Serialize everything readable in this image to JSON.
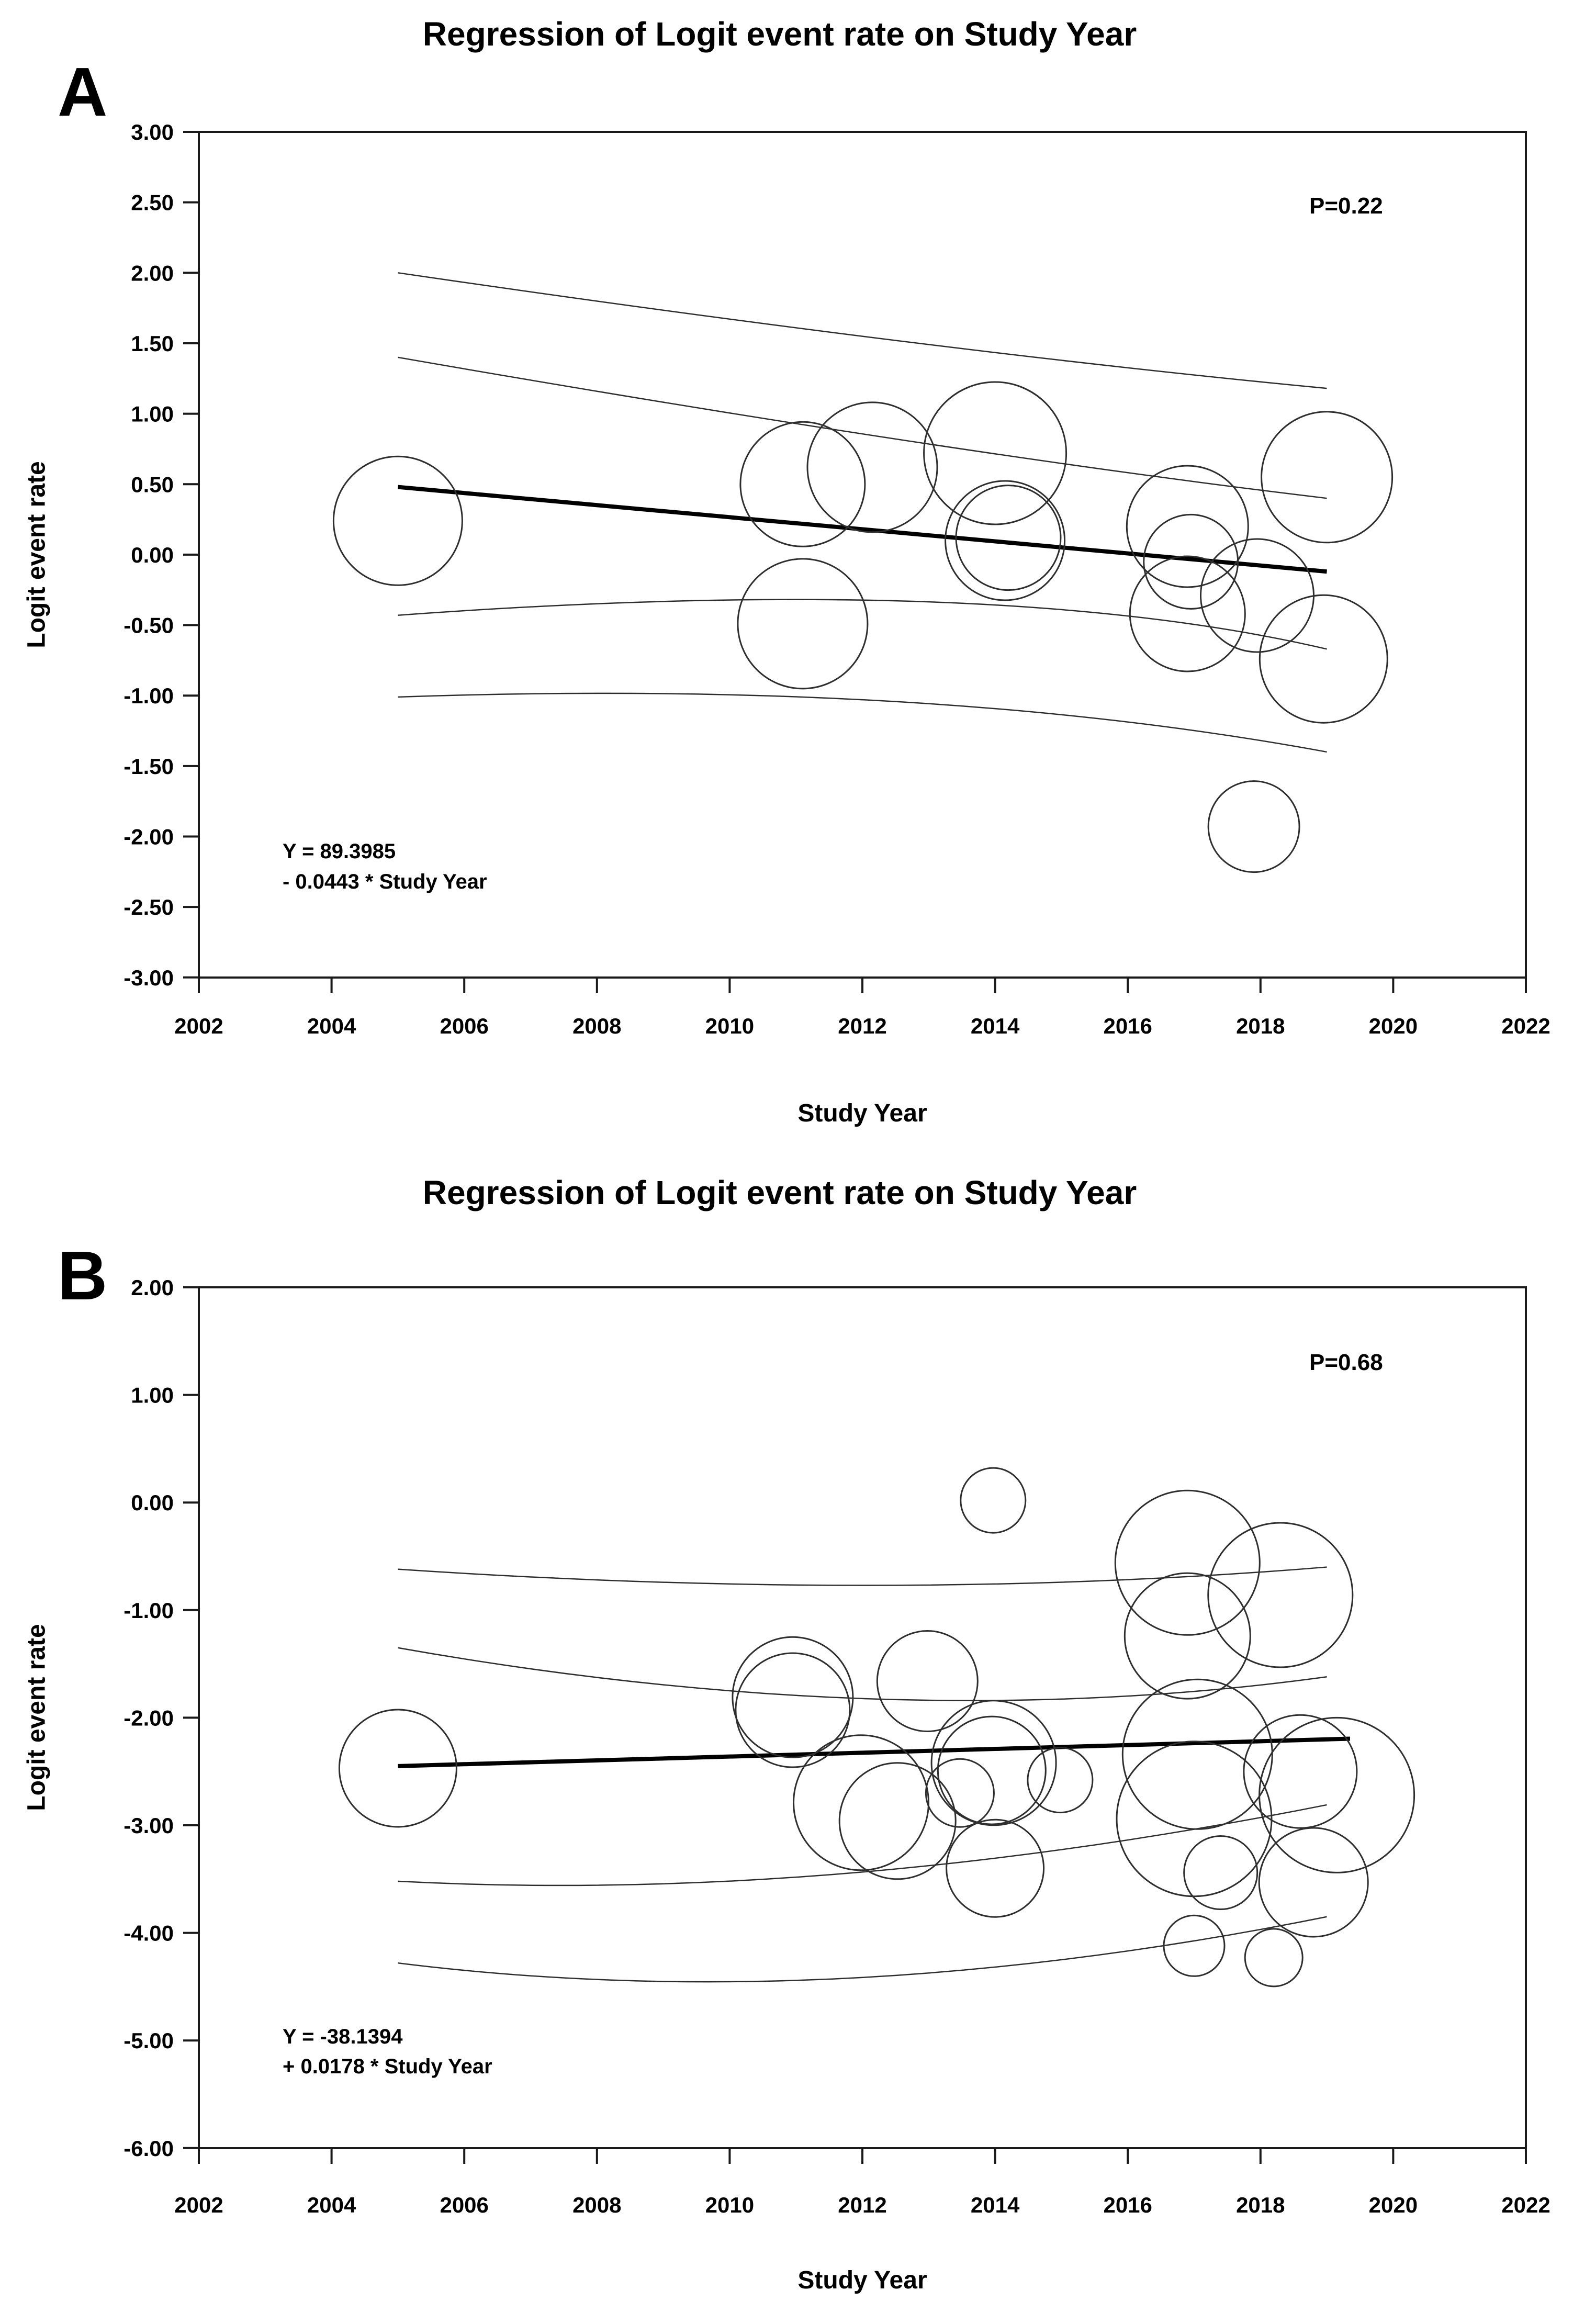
{
  "page": {
    "background": "#ffffff",
    "text_color": "#000000"
  },
  "chart_data": [
    {
      "type": "scatter",
      "subtype": "meta-regression-bubble",
      "panel_label": "A",
      "title": "Regression of Logit event rate on Study Year",
      "xlabel": "Study Year",
      "ylabel": "Logit event rate",
      "p_label": "P=0.22",
      "equation_line1": "Y = 89.3985",
      "equation_line2": "- 0.0443 * Study Year",
      "regression": {
        "intercept": 89.3985,
        "slope": -0.0443,
        "line_start": [
          2005,
          0.48
        ],
        "line_end": [
          2019,
          -0.12
        ]
      },
      "xlim": [
        2002,
        2022
      ],
      "ylim": [
        -3.0,
        3.0
      ],
      "grid": false,
      "x_ticks": [
        2002,
        2004,
        2006,
        2008,
        2010,
        2012,
        2014,
        2016,
        2018,
        2020,
        2022
      ],
      "x_tick_labels": [
        "2002",
        "2004",
        "2006",
        "2008",
        "2010",
        "2012",
        "2014",
        "2016",
        "2018",
        "2020",
        "2022"
      ],
      "y_tick_values": [
        3.0,
        2.5,
        2.0,
        1.5,
        1.0,
        0.5,
        0.0,
        -0.5,
        -1.0,
        -1.5,
        -2.0,
        -2.5,
        -3.0
      ],
      "y_tick_labels": [
        "3.00",
        "2.50",
        "2.00",
        "1.50",
        "1.00",
        "0.50",
        "0.00",
        "-0.50",
        "-1.00",
        "-1.50",
        "-2.00",
        "-2.50",
        "-3.00"
      ],
      "ci_curves": [
        {
          "name": "outer-upper",
          "start": [
            2005,
            2.0
          ],
          "control": [
            2013,
            1.45
          ],
          "end": [
            2019,
            1.18
          ]
        },
        {
          "name": "inner-upper",
          "start": [
            2005,
            1.4
          ],
          "control": [
            2013.3,
            0.72
          ],
          "end": [
            2019,
            0.4
          ]
        },
        {
          "name": "inner-lower",
          "start": [
            2005,
            -0.43
          ],
          "control": [
            2014,
            -0.12
          ],
          "end": [
            2019,
            -0.67
          ]
        },
        {
          "name": "outer-lower",
          "start": [
            2005,
            -1.01
          ],
          "control": [
            2013,
            -0.88
          ],
          "end": [
            2019,
            -1.4
          ]
        }
      ],
      "bubbles": [
        [
          2005.0,
          0.24,
          123
        ],
        [
          2011.1,
          0.5,
          119
        ],
        [
          2012.15,
          0.62,
          124
        ],
        [
          2011.1,
          -0.49,
          124
        ],
        [
          2014.0,
          0.72,
          136
        ],
        [
          2014.15,
          0.1,
          114
        ],
        [
          2014.2,
          0.12,
          100
        ],
        [
          2016.9,
          0.2,
          116
        ],
        [
          2016.95,
          -0.05,
          90
        ],
        [
          2016.9,
          -0.42,
          110
        ],
        [
          2017.95,
          -0.29,
          108
        ],
        [
          2019.0,
          0.55,
          125
        ],
        [
          2018.95,
          -0.74,
          122
        ],
        [
          2017.9,
          -1.93,
          87
        ]
      ]
    },
    {
      "type": "scatter",
      "subtype": "meta-regression-bubble",
      "panel_label": "B",
      "title": "Regression of Logit event rate on Study Year",
      "xlabel": "Study Year",
      "ylabel": "Logit event rate",
      "p_label": "P=0.68",
      "equation_line1": "Y = -38.1394",
      "equation_line2": "+ 0.0178 * Study Year",
      "regression": {
        "intercept": -38.1394,
        "slope": 0.0178,
        "line_start": [
          2005,
          -2.45
        ],
        "line_end": [
          2019.35,
          -2.195
        ]
      },
      "xlim": [
        2002,
        2022
      ],
      "ylim": [
        -6.0,
        2.0
      ],
      "grid": false,
      "x_ticks": [
        2002,
        2004,
        2006,
        2008,
        2010,
        2012,
        2014,
        2016,
        2018,
        2020,
        2022
      ],
      "x_tick_labels": [
        "2002",
        "2004",
        "2006",
        "2008",
        "2010",
        "2012",
        "2014",
        "2016",
        "2018",
        "2020",
        "2022"
      ],
      "y_tick_values": [
        2.0,
        1.0,
        0.0,
        -1.0,
        -2.0,
        -3.0,
        -4.0,
        -5.0,
        -6.0
      ],
      "y_tick_labels": [
        "2.00",
        "1.00",
        "0.00",
        "-1.00",
        "-2.00",
        "-3.00",
        "-4.00",
        "-5.00",
        "-6.00"
      ],
      "ci_curves": [
        {
          "name": "outer-upper",
          "start": [
            2005,
            -0.62
          ],
          "control": [
            2012.5,
            -0.93
          ],
          "end": [
            2019,
            -0.6
          ]
        },
        {
          "name": "inner-upper",
          "start": [
            2005,
            -1.35
          ],
          "control": [
            2012.5,
            -2.17
          ],
          "end": [
            2019,
            -1.62
          ]
        },
        {
          "name": "inner-lower",
          "start": [
            2005,
            -3.52
          ],
          "control": [
            2011.5,
            -3.73
          ],
          "end": [
            2019,
            -2.81
          ]
        },
        {
          "name": "outer-lower",
          "start": [
            2005,
            -4.28
          ],
          "control": [
            2011.5,
            -4.78
          ],
          "end": [
            2019,
            -3.85
          ]
        }
      ],
      "bubbles": [
        [
          2005.0,
          -2.47,
          112
        ],
        [
          2010.95,
          -1.81,
          115
        ],
        [
          2010.95,
          -1.93,
          109
        ],
        [
          2012.98,
          -1.66,
          96
        ],
        [
          2013.97,
          0.02,
          62
        ],
        [
          2011.98,
          -2.79,
          129
        ],
        [
          2012.53,
          -2.96,
          111
        ],
        [
          2013.47,
          -2.7,
          65
        ],
        [
          2013.98,
          -2.42,
          119
        ],
        [
          2013.95,
          -2.49,
          103
        ],
        [
          2014.98,
          -2.58,
          62
        ],
        [
          2014.0,
          -3.4,
          93
        ],
        [
          2016.9,
          -0.56,
          138
        ],
        [
          2018.3,
          -0.86,
          138
        ],
        [
          2016.9,
          -1.24,
          120
        ],
        [
          2017.05,
          -2.34,
          143
        ],
        [
          2017.0,
          -2.94,
          148
        ],
        [
          2018.6,
          -2.5,
          108
        ],
        [
          2019.15,
          -2.72,
          148
        ],
        [
          2018.8,
          -3.53,
          104
        ],
        [
          2017.4,
          -3.44,
          70
        ],
        [
          2017.0,
          -4.12,
          58
        ],
        [
          2018.2,
          -4.23,
          55
        ]
      ]
    }
  ]
}
